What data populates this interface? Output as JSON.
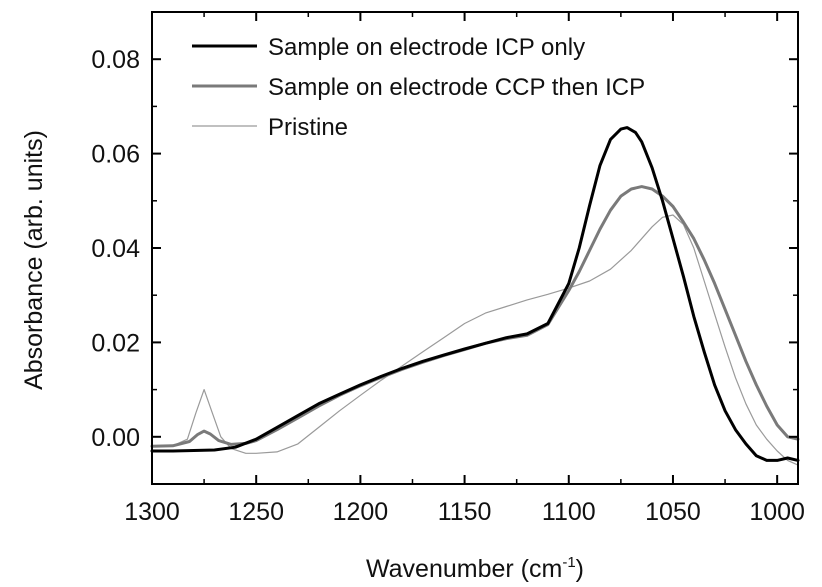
{
  "chart_data": {
    "type": "line",
    "xlabel": "Wavenumber (cm",
    "xlabel_superscript": "-1",
    "xlabel_suffix": ")",
    "ylabel": "Absorbance (arb. units)",
    "xlim": [
      1300,
      990
    ],
    "x_reversed": true,
    "ylim": [
      -0.01,
      0.09
    ],
    "x_ticks": [
      1300,
      1250,
      1200,
      1150,
      1100,
      1050,
      1000
    ],
    "x_tick_labels": [
      "1300",
      "1250",
      "1200",
      "1150",
      "1100",
      "1050",
      "1000"
    ],
    "y_ticks": [
      0.0,
      0.02,
      0.04,
      0.06,
      0.08
    ],
    "y_tick_labels": [
      "0.00",
      "0.02",
      "0.04",
      "0.06",
      "0.08"
    ],
    "grid": false,
    "legend_position": "top-left",
    "series": [
      {
        "name": "Sample on electrode ICP only",
        "color": "#000000",
        "x": [
          1300,
          1290,
          1280,
          1270,
          1260,
          1250,
          1240,
          1230,
          1220,
          1210,
          1200,
          1190,
          1180,
          1170,
          1160,
          1150,
          1140,
          1130,
          1120,
          1110,
          1100,
          1095,
          1090,
          1085,
          1080,
          1075,
          1072,
          1068,
          1065,
          1060,
          1055,
          1050,
          1045,
          1040,
          1035,
          1030,
          1025,
          1020,
          1015,
          1010,
          1005,
          1000,
          995,
          990
        ],
        "y": [
          -0.003,
          -0.003,
          -0.0029,
          -0.0028,
          -0.0022,
          -0.0005,
          0.002,
          0.0045,
          0.007,
          0.009,
          0.011,
          0.0128,
          0.0145,
          0.016,
          0.0173,
          0.0186,
          0.0198,
          0.021,
          0.0218,
          0.024,
          0.0325,
          0.04,
          0.049,
          0.0575,
          0.063,
          0.0652,
          0.0655,
          0.0645,
          0.0625,
          0.057,
          0.05,
          0.042,
          0.034,
          0.0255,
          0.018,
          0.011,
          0.0055,
          0.0015,
          -0.0015,
          -0.004,
          -0.005,
          -0.005,
          -0.0045,
          -0.005
        ]
      },
      {
        "name": "Sample on electrode CCP then ICP",
        "color": "#7a7a7a",
        "x": [
          1300,
          1290,
          1282,
          1278,
          1275,
          1272,
          1268,
          1262,
          1255,
          1250,
          1240,
          1230,
          1220,
          1210,
          1200,
          1190,
          1180,
          1170,
          1160,
          1150,
          1140,
          1130,
          1120,
          1110,
          1100,
          1095,
          1090,
          1085,
          1080,
          1075,
          1070,
          1065,
          1060,
          1055,
          1050,
          1045,
          1040,
          1035,
          1030,
          1025,
          1020,
          1015,
          1010,
          1005,
          1000,
          995,
          990
        ],
        "y": [
          -0.002,
          -0.0019,
          -0.001,
          0.0005,
          0.0012,
          0.0006,
          -0.0008,
          -0.0016,
          -0.0014,
          -0.0008,
          0.0015,
          0.004,
          0.0065,
          0.0088,
          0.0108,
          0.0126,
          0.0143,
          0.0158,
          0.0172,
          0.0185,
          0.0198,
          0.0208,
          0.0215,
          0.0238,
          0.031,
          0.035,
          0.0395,
          0.044,
          0.048,
          0.051,
          0.0525,
          0.053,
          0.0525,
          0.051,
          0.0488,
          0.0455,
          0.042,
          0.0375,
          0.0325,
          0.027,
          0.0215,
          0.016,
          0.011,
          0.0065,
          0.0025,
          0.0,
          -0.0005
        ]
      },
      {
        "name": "Pristine",
        "color": "#9a9a9a",
        "x": [
          1300,
          1290,
          1283,
          1279,
          1275,
          1271,
          1267,
          1262,
          1255,
          1250,
          1240,
          1230,
          1220,
          1210,
          1200,
          1190,
          1180,
          1170,
          1160,
          1150,
          1140,
          1130,
          1120,
          1110,
          1100,
          1090,
          1080,
          1070,
          1060,
          1055,
          1050,
          1045,
          1040,
          1035,
          1030,
          1025,
          1020,
          1015,
          1010,
          1005,
          1000,
          995,
          990
        ],
        "y": [
          -0.002,
          -0.0019,
          -0.0005,
          0.005,
          0.01,
          0.005,
          0.0,
          -0.0025,
          -0.0035,
          -0.0035,
          -0.0032,
          -0.0015,
          0.002,
          0.0055,
          0.0088,
          0.012,
          0.015,
          0.018,
          0.021,
          0.024,
          0.0262,
          0.0276,
          0.029,
          0.0302,
          0.0315,
          0.033,
          0.0355,
          0.0395,
          0.0445,
          0.0465,
          0.047,
          0.045,
          0.04,
          0.033,
          0.026,
          0.019,
          0.0125,
          0.007,
          0.0025,
          -0.0005,
          -0.003,
          -0.005,
          -0.006
        ]
      }
    ]
  }
}
